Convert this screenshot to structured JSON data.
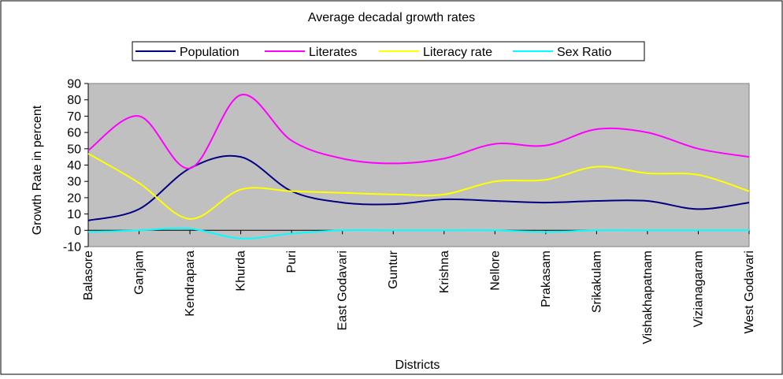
{
  "chart_data": {
    "type": "line",
    "title": "Average decadal growth rates",
    "xlabel": "Districts",
    "ylabel": "Growth Rate in percent",
    "ylim": [
      -10,
      90
    ],
    "yticks": [
      -10,
      0,
      10,
      20,
      30,
      40,
      50,
      60,
      70,
      80,
      90
    ],
    "grid": false,
    "legend_position": "top",
    "plot_background": "#C0C0C0",
    "categories": [
      "Balasore",
      "Ganjam",
      "Kendrapara",
      "Khurda",
      "Puri",
      "East Godavari",
      "Guntur",
      "Krishna",
      "Nellore",
      "Prakasam",
      "Srikakulam",
      "Vishakhapatnam",
      "Vizianagaram",
      "West Godavari"
    ],
    "series": [
      {
        "name": "Population",
        "color": "#000080",
        "values": [
          6,
          13,
          38,
          45,
          24,
          17,
          16,
          19,
          18,
          17,
          18,
          18,
          13,
          17
        ]
      },
      {
        "name": "Literates",
        "color": "#FF00FF",
        "values": [
          49,
          70,
          38,
          83,
          55,
          44,
          41,
          44,
          53,
          52,
          62,
          60,
          50,
          45
        ]
      },
      {
        "name": "Literacy rate",
        "color": "#FFFF00",
        "values": [
          47,
          29,
          7,
          25,
          24,
          23,
          22,
          22,
          30,
          31,
          39,
          35,
          34,
          24
        ]
      },
      {
        "name": "Sex Ratio",
        "color": "#00FFFF",
        "values": [
          -1,
          0,
          1,
          -5,
          -2,
          0,
          0,
          0,
          0,
          -1,
          0,
          0,
          0,
          0
        ]
      }
    ]
  }
}
